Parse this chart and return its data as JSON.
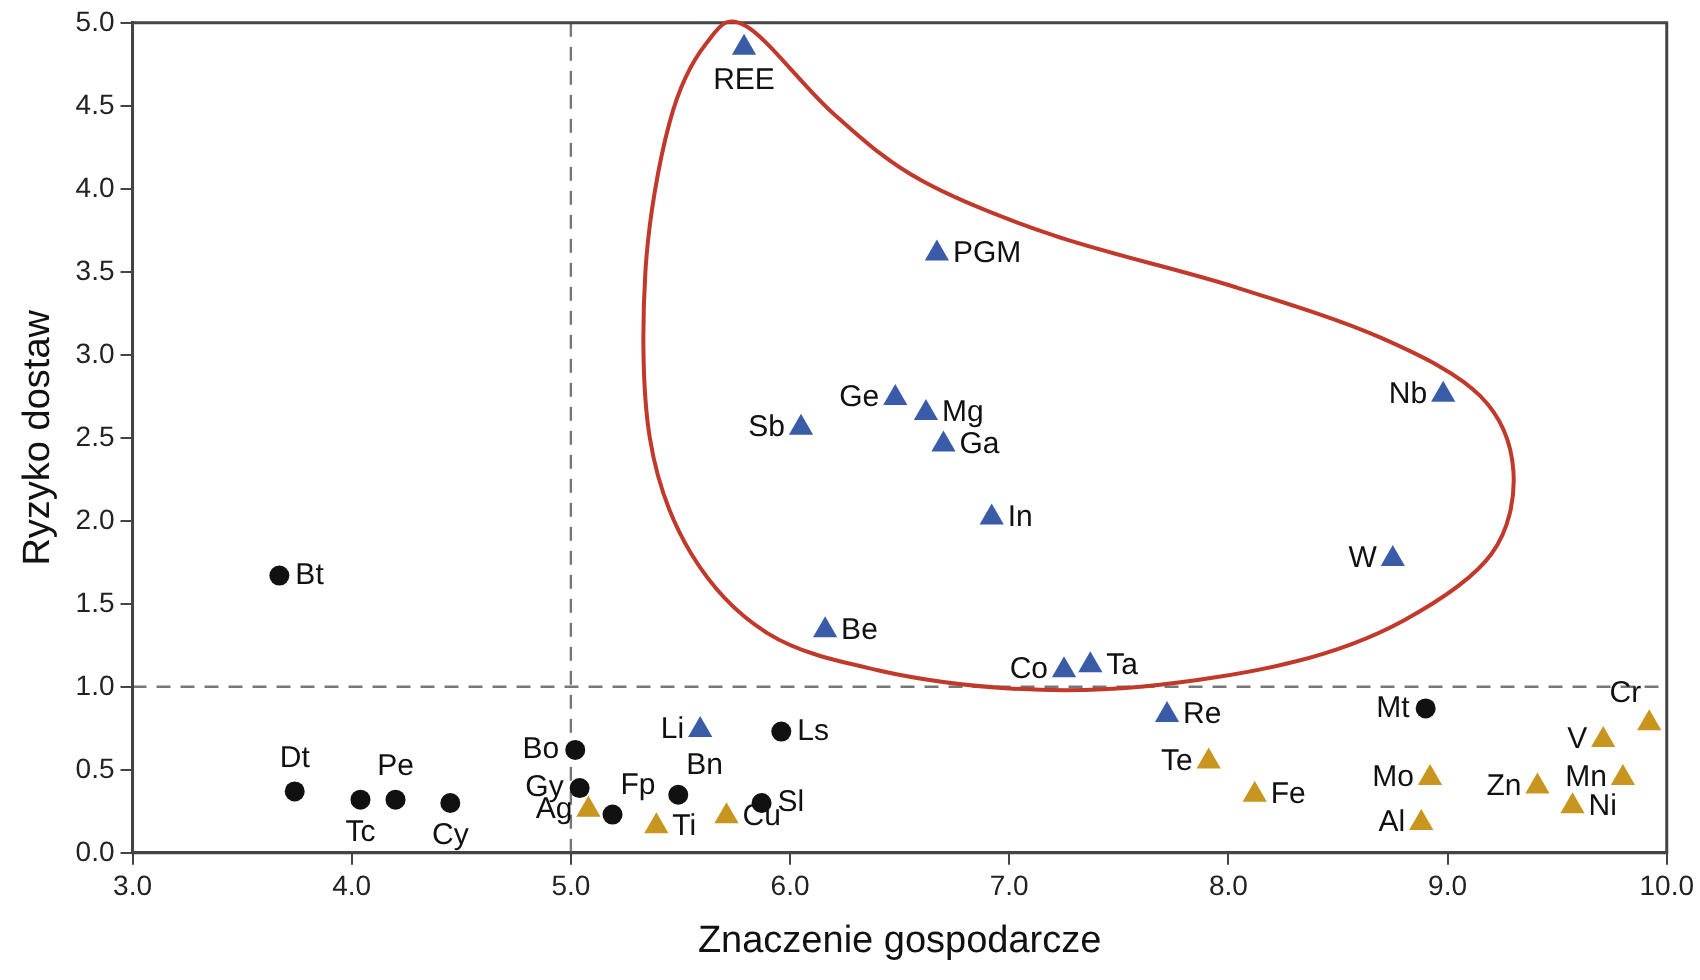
{
  "chart_data": {
    "type": "scatter",
    "xlabel": "Znaczenie gospodarcze",
    "ylabel": "Ryzyko dostaw",
    "xlim": [
      3,
      10
    ],
    "xticks": [
      {
        "value": 3,
        "label": "3.0"
      },
      {
        "value": 4,
        "label": "4.0"
      },
      {
        "value": 5,
        "label": "5.0"
      },
      {
        "value": 6,
        "label": "6.0"
      },
      {
        "value": 7,
        "label": "7.0"
      },
      {
        "value": 8,
        "label": "8.0"
      },
      {
        "value": 9,
        "label": "9.0"
      },
      {
        "value": 10,
        "label": "10.0"
      }
    ],
    "ylim": [
      0,
      5
    ],
    "yticks": [
      {
        "value": 0,
        "label": "0.0"
      },
      {
        "value": 0.5,
        "label": "0.5"
      },
      {
        "value": 1,
        "label": "1.0"
      },
      {
        "value": 1.5,
        "label": "1.5"
      },
      {
        "value": 2,
        "label": "2.0"
      },
      {
        "value": 2.5,
        "label": "2.5"
      },
      {
        "value": 3,
        "label": "3.0"
      },
      {
        "value": 3.5,
        "label": "3.5"
      },
      {
        "value": 4,
        "label": "4.0"
      },
      {
        "value": 4.5,
        "label": "4.5"
      },
      {
        "value": 5,
        "label": "5.0"
      }
    ],
    "grid": false,
    "legend": false,
    "ref_lines": [
      {
        "axis": "x",
        "value": 5,
        "line_style": "dashed",
        "color": "#777777"
      },
      {
        "axis": "y",
        "value": 1,
        "line_style": "dashed",
        "color": "#777777"
      }
    ],
    "series": [
      {
        "color": "#111111",
        "marker": "circle",
        "x": [
          3.67,
          3.74,
          4.04,
          4.2,
          4.45,
          5.02,
          5.04,
          5.19,
          5.49,
          5.96,
          5.87,
          8.9
        ],
        "values": [
          1.67,
          0.37,
          0.32,
          0.32,
          0.3,
          0.62,
          0.39,
          0.23,
          0.35,
          0.73,
          0.3,
          0.87
        ],
        "value_labels": [
          "Bt",
          "Dt",
          "Tc",
          "Pe",
          "Cy",
          "Bo",
          "Gy",
          "Fp",
          "Bn",
          "Ls",
          "Sl",
          "Mt"
        ]
      },
      {
        "color": "#3a5ca8",
        "marker": "triangle",
        "x": [
          5.79,
          6.67,
          6.05,
          6.48,
          6.62,
          6.7,
          6.92,
          8.98,
          8.75,
          6.16,
          7.25,
          7.37,
          7.72,
          5.59
        ],
        "values": [
          4.85,
          3.61,
          2.56,
          2.74,
          2.65,
          2.46,
          2.02,
          2.76,
          1.77,
          1.34,
          1.1,
          1.13,
          0.83,
          0.74
        ],
        "value_labels": [
          "REE",
          "PGM",
          "Sb",
          "Ge",
          "Mg",
          "Ga",
          "In",
          "Nb",
          "W",
          "Be",
          "Co",
          "Ta",
          "Re",
          "Li"
        ]
      },
      {
        "color": "#c8961e",
        "marker": "triangle",
        "x": [
          5.08,
          5.39,
          5.71,
          7.91,
          8.12,
          8.92,
          8.88,
          9.41,
          9.71,
          9.92,
          9.8,
          9.57
        ],
        "values": [
          0.26,
          0.16,
          0.22,
          0.55,
          0.35,
          0.45,
          0.18,
          0.4,
          0.68,
          0.78,
          0.45,
          0.28
        ],
        "value_labels": [
          "Ag",
          "Ti",
          "Cu",
          "Te",
          "Fe",
          "Mo",
          "Al",
          "Zn",
          "V",
          "Cr",
          "Mn",
          "Ni"
        ]
      }
    ]
  }
}
